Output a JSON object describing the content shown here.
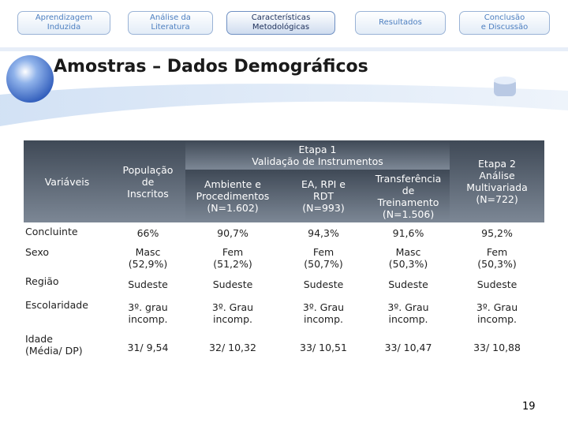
{
  "nav": {
    "tabs": [
      "Aprendizagem\nInduzida",
      "Análise da\nLiteratura",
      "Características\nMetodológicas",
      "Resultados",
      "Conclusão\ne Discussão"
    ]
  },
  "title": "Amostras – Dados Demográficos",
  "table": {
    "header": {
      "variables": "Variáveis",
      "population": "População\nde\nInscritos",
      "stage1": "Etapa 1\nValidação de Instrumentos",
      "stage1_columns": [
        "Ambiente e\nProcedimentos\n(N=1.602)",
        "EA, RPI e\nRDT\n(N=993)",
        "Transferência\nde\nTreinamento\n(N=1.506)"
      ],
      "stage2": "Etapa 2\nAnálise\nMultivariada\n(N=722)"
    },
    "rows": [
      [
        "Concluinte",
        "66%",
        "90,7%",
        "94,3%",
        "91,6%",
        "95,2%"
      ],
      [
        "Sexo",
        "Masc\n(52,9%)",
        "Fem\n(51,2%)",
        "Fem\n(50,7%)",
        "Masc\n(50,3%)",
        "Fem\n(50,3%)"
      ],
      [
        "Região",
        "Sudeste",
        "Sudeste",
        "Sudeste",
        "Sudeste",
        "Sudeste"
      ],
      [
        "Escolaridade",
        "3º. grau\nincomp.",
        "3º. Grau\nincomp.",
        "3º. Grau\nincomp.",
        "3º. Grau\nincomp.",
        "3º. Grau\nincomp."
      ],
      [
        "Idade\n(Média/ DP)",
        "31/ 9,54",
        "32/ 10,32",
        "33/ 10,51",
        "33/ 10,47",
        "33/ 10,88"
      ]
    ]
  },
  "page_number": "19"
}
